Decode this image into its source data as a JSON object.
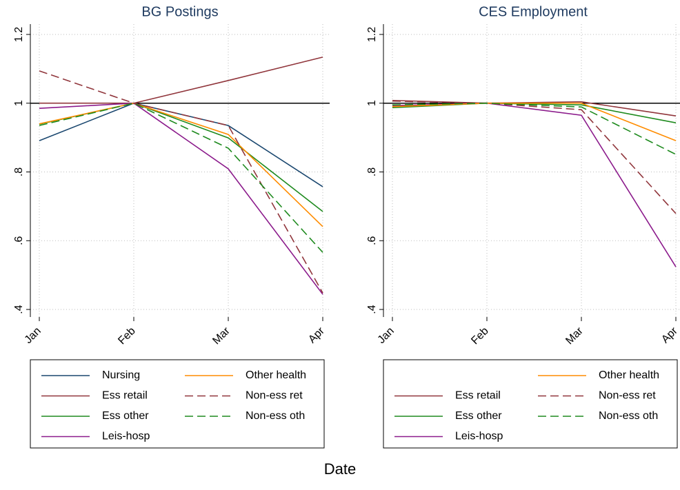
{
  "xlabel": "Date",
  "chart_data": [
    {
      "type": "line",
      "title": "BG Postings",
      "categories": [
        "Jan",
        "Feb",
        "Mar",
        "Apr"
      ],
      "ylim": [
        0.378,
        1.23
      ],
      "yticks": [
        {
          "value": 0.4,
          "label": ".4"
        },
        {
          "value": 0.6,
          "label": ".6"
        },
        {
          "value": 0.8,
          "label": ".8"
        },
        1,
        1.2
      ],
      "yline": 1,
      "grid": true,
      "series": [
        {
          "name": "Nursing",
          "color": "#1a476f",
          "dash": false,
          "values": [
            0.891,
            1,
            0.935,
            0.757
          ]
        },
        {
          "name": "Ess retail",
          "color": "#90353b",
          "dash": false,
          "values": [
            1.0,
            1,
            1.066,
            1.134
          ]
        },
        {
          "name": "Ess other",
          "color": "#1e8a1e",
          "dash": false,
          "values": [
            0.939,
            1,
            0.899,
            0.685
          ]
        },
        {
          "name": "Leis-hosp",
          "color": "#8b1a8b",
          "dash": false,
          "values": [
            0.985,
            1,
            0.809,
            0.444
          ]
        },
        {
          "name": "Other health",
          "color": "#ff8c00",
          "dash": false,
          "values": [
            0.94,
            1,
            0.909,
            0.641
          ]
        },
        {
          "name": "Non-ess ret",
          "color": "#90353b",
          "dash": true,
          "values": [
            1.094,
            1,
            0.935,
            0.448
          ]
        },
        {
          "name": "Non-ess oth",
          "color": "#1e8a1e",
          "dash": true,
          "values": [
            0.935,
            1,
            0.869,
            0.566
          ]
        }
      ]
    },
    {
      "type": "line",
      "title": "CES Employment",
      "categories": [
        "Jan",
        "Feb",
        "Mar",
        "Apr"
      ],
      "ylim": [
        0.378,
        1.23
      ],
      "yticks": [
        {
          "value": 0.4,
          "label": ".4"
        },
        {
          "value": 0.6,
          "label": ".6"
        },
        {
          "value": 0.8,
          "label": ".8"
        },
        1,
        1.2
      ],
      "yline": 1,
      "grid": true,
      "series": [
        {
          "name": "Ess retail",
          "color": "#90353b",
          "dash": false,
          "values": [
            1.008,
            1,
            1.004,
            0.963
          ]
        },
        {
          "name": "Ess other",
          "color": "#1e8a1e",
          "dash": false,
          "values": [
            0.987,
            1,
            0.995,
            0.943
          ]
        },
        {
          "name": "Leis-hosp",
          "color": "#8b1a8b",
          "dash": false,
          "values": [
            0.993,
            1,
            0.965,
            0.524
          ]
        },
        {
          "name": "Other health",
          "color": "#ff8c00",
          "dash": false,
          "values": [
            0.99,
            1,
            1.0,
            0.891
          ]
        },
        {
          "name": "Non-ess ret",
          "color": "#90353b",
          "dash": true,
          "values": [
            1.006,
            1,
            0.981,
            0.679
          ]
        },
        {
          "name": "Non-ess oth",
          "color": "#1e8a1e",
          "dash": true,
          "values": [
            0.995,
            1,
            0.989,
            0.851
          ]
        }
      ]
    }
  ]
}
